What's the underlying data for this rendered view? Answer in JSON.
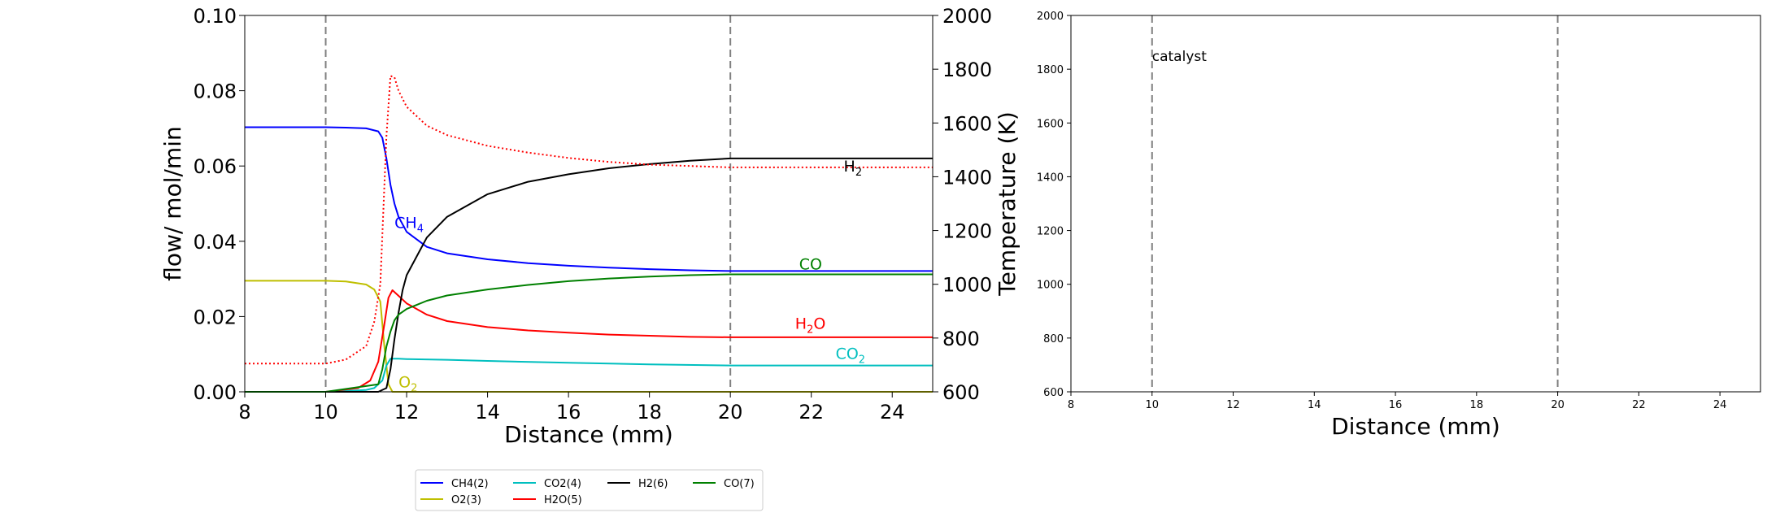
{
  "chart_data": [
    {
      "type": "line",
      "xlabel": "Distance (mm)",
      "ylabel": "flow/ mol/min",
      "ylabel_right": "Temperature (K)",
      "xlim": [
        8,
        25
      ],
      "ylim": [
        0,
        0.1
      ],
      "ylim_right": [
        600,
        2000
      ],
      "xticks": [
        "8",
        "10",
        "12",
        "14",
        "16",
        "18",
        "20",
        "22",
        "24"
      ],
      "yticks": [
        "0.00",
        "0.02",
        "0.04",
        "0.06",
        "0.08",
        "0.10"
      ],
      "yticks_right": [
        "600",
        "800",
        "1000",
        "1200",
        "1400",
        "1600",
        "1800",
        "2000"
      ],
      "vlines": [
        10,
        20
      ],
      "grid": false,
      "colors": {
        "CH4": "#0000ff",
        "O2": "#bfbf00",
        "CO2": "#00bfbf",
        "H2O": "#ff0000",
        "H2": "#000000",
        "CO": "#008000",
        "vline": "#808080"
      },
      "series": [
        {
          "name": "CH4(2)",
          "color": "#0000ff",
          "style": "solid",
          "x": [
            8,
            10,
            10.5,
            11,
            11.3,
            11.4,
            11.5,
            11.6,
            11.7,
            11.8,
            12,
            12.5,
            13,
            14,
            15,
            16,
            17,
            18,
            19,
            20,
            21,
            22,
            23,
            24,
            25
          ],
          "y": [
            0.0703,
            0.0703,
            0.0702,
            0.07,
            0.0692,
            0.0675,
            0.062,
            0.055,
            0.05,
            0.0465,
            0.0425,
            0.0385,
            0.0368,
            0.0352,
            0.0342,
            0.0335,
            0.033,
            0.0326,
            0.0323,
            0.0321,
            0.0321,
            0.0321,
            0.0321,
            0.0321,
            0.0321
          ]
        },
        {
          "name": "O2(3)",
          "color": "#bfbf00",
          "style": "solid",
          "x": [
            8,
            10,
            10.5,
            11,
            11.2,
            11.35,
            11.45,
            11.55,
            11.65,
            12,
            25
          ],
          "y": [
            0.0295,
            0.0295,
            0.0293,
            0.0285,
            0.0272,
            0.024,
            0.012,
            0.002,
            0.0,
            0.0,
            0.0
          ]
        },
        {
          "name": "CO2(4)",
          "color": "#00bfbf",
          "style": "solid",
          "x": [
            8,
            10,
            11,
            11.2,
            11.4,
            11.5,
            11.6,
            11.8,
            12,
            13,
            14,
            16,
            18,
            20,
            22,
            25
          ],
          "y": [
            0.0,
            0.0,
            0.0005,
            0.001,
            0.003,
            0.007,
            0.0088,
            0.0088,
            0.0087,
            0.0085,
            0.0082,
            0.0077,
            0.0073,
            0.007,
            0.007,
            0.007
          ]
        },
        {
          "name": "H2O(5)",
          "color": "#ff0000",
          "style": "solid",
          "x": [
            8,
            10,
            10.8,
            11.1,
            11.3,
            11.45,
            11.55,
            11.65,
            11.8,
            12,
            12.5,
            13,
            14,
            15,
            16,
            17,
            18,
            19,
            20,
            22,
            25
          ],
          "y": [
            0.0,
            0.0,
            0.001,
            0.003,
            0.008,
            0.018,
            0.025,
            0.027,
            0.0255,
            0.0235,
            0.0205,
            0.0188,
            0.0172,
            0.0163,
            0.0157,
            0.0152,
            0.0149,
            0.0146,
            0.0145,
            0.0145,
            0.0145
          ]
        },
        {
          "name": "H2(6)",
          "color": "#000000",
          "style": "solid",
          "x": [
            8,
            10,
            11.3,
            11.5,
            11.6,
            11.7,
            11.8,
            11.9,
            12,
            12.5,
            13,
            14,
            15,
            16,
            17,
            18,
            19,
            20,
            22,
            25
          ],
          "y": [
            0.0,
            0.0,
            0.0,
            0.001,
            0.006,
            0.014,
            0.021,
            0.027,
            0.031,
            0.041,
            0.0465,
            0.0525,
            0.0558,
            0.0578,
            0.0594,
            0.0605,
            0.0614,
            0.062,
            0.062,
            0.062
          ]
        },
        {
          "name": "CO(7)",
          "color": "#008000",
          "style": "solid",
          "x": [
            8,
            10,
            11.3,
            11.4,
            11.5,
            11.6,
            11.7,
            11.8,
            12,
            12.5,
            13,
            14,
            15,
            16,
            17,
            18,
            19,
            20,
            22,
            25
          ],
          "y": [
            0.0,
            0.0,
            0.002,
            0.006,
            0.012,
            0.016,
            0.019,
            0.0205,
            0.022,
            0.0242,
            0.0256,
            0.0272,
            0.0284,
            0.0294,
            0.0301,
            0.0306,
            0.031,
            0.0312,
            0.0312,
            0.0312
          ]
        },
        {
          "name": "Temperature",
          "color": "#ff0000",
          "style": "dotted",
          "axis": "right",
          "x": [
            8,
            10,
            10.5,
            11,
            11.2,
            11.35,
            11.5,
            11.6,
            11.7,
            11.8,
            12,
            12.5,
            13,
            14,
            15,
            16,
            17,
            18,
            19,
            20,
            25
          ],
          "y": [
            705,
            705,
            720,
            770,
            860,
            1000,
            1550,
            1775,
            1770,
            1720,
            1660,
            1590,
            1555,
            1515,
            1490,
            1470,
            1455,
            1445,
            1440,
            1435,
            1435
          ]
        }
      ],
      "annotations": [
        {
          "text": "CH",
          "sub": "4",
          "x": 11.7,
          "y": 0.0435,
          "color": "#0000ff"
        },
        {
          "text": "CO",
          "sub": "",
          "x": 21.7,
          "y": 0.0325,
          "color": "#008000"
        },
        {
          "text": "H",
          "sub": "2",
          "x": 22.8,
          "y": 0.0585,
          "color": "#000000"
        },
        {
          "text": "H",
          "sub": "2O",
          "x": 21.6,
          "y": 0.0167,
          "color": "#ff0000"
        },
        {
          "text": "CO",
          "sub": "2",
          "x": 22.6,
          "y": 0.0088,
          "color": "#00bfbf"
        },
        {
          "text": "O",
          "sub": "2",
          "x": 11.8,
          "y": 0.0012,
          "color": "#bfbf00"
        }
      ],
      "legend": {
        "placement": "bottom-left (below axes)",
        "entries": [
          {
            "label": "CH4(2)",
            "color": "#0000ff"
          },
          {
            "label": "CO2(4)",
            "color": "#00bfbf"
          },
          {
            "label": "H2(6)",
            "color": "#000000"
          },
          {
            "label": "CO(7)",
            "color": "#008000"
          },
          {
            "label": "O2(3)",
            "color": "#bfbf00"
          },
          {
            "label": "H2O(5)",
            "color": "#ff0000"
          }
        ]
      }
    },
    {
      "type": "line",
      "xlabel": "Distance (mm)",
      "ylabel": "",
      "xlim": [
        8,
        25
      ],
      "ylim": [
        600,
        2000
      ],
      "xticks": [
        "8",
        "10",
        "12",
        "14",
        "16",
        "18",
        "20",
        "22",
        "24"
      ],
      "yticks": [
        "600",
        "800",
        "1000",
        "1200",
        "1400",
        "1600",
        "1800",
        "2000"
      ],
      "vlines": [
        10,
        20
      ],
      "grid": false,
      "series": [],
      "annotations": [
        {
          "text": "catalyst",
          "x": 10,
          "y": 1830,
          "color": "#000000"
        }
      ]
    }
  ]
}
